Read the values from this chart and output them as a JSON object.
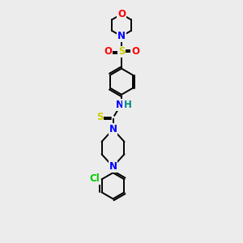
{
  "background_color": "#ececec",
  "atom_colors": {
    "C": "#000000",
    "N": "#0000ff",
    "O": "#ff0000",
    "S": "#cccc00",
    "Cl": "#00cc00",
    "H": "#008888"
  },
  "figsize": [
    3.0,
    3.0
  ],
  "dpi": 100,
  "lw": 1.4,
  "fs": 8.5
}
